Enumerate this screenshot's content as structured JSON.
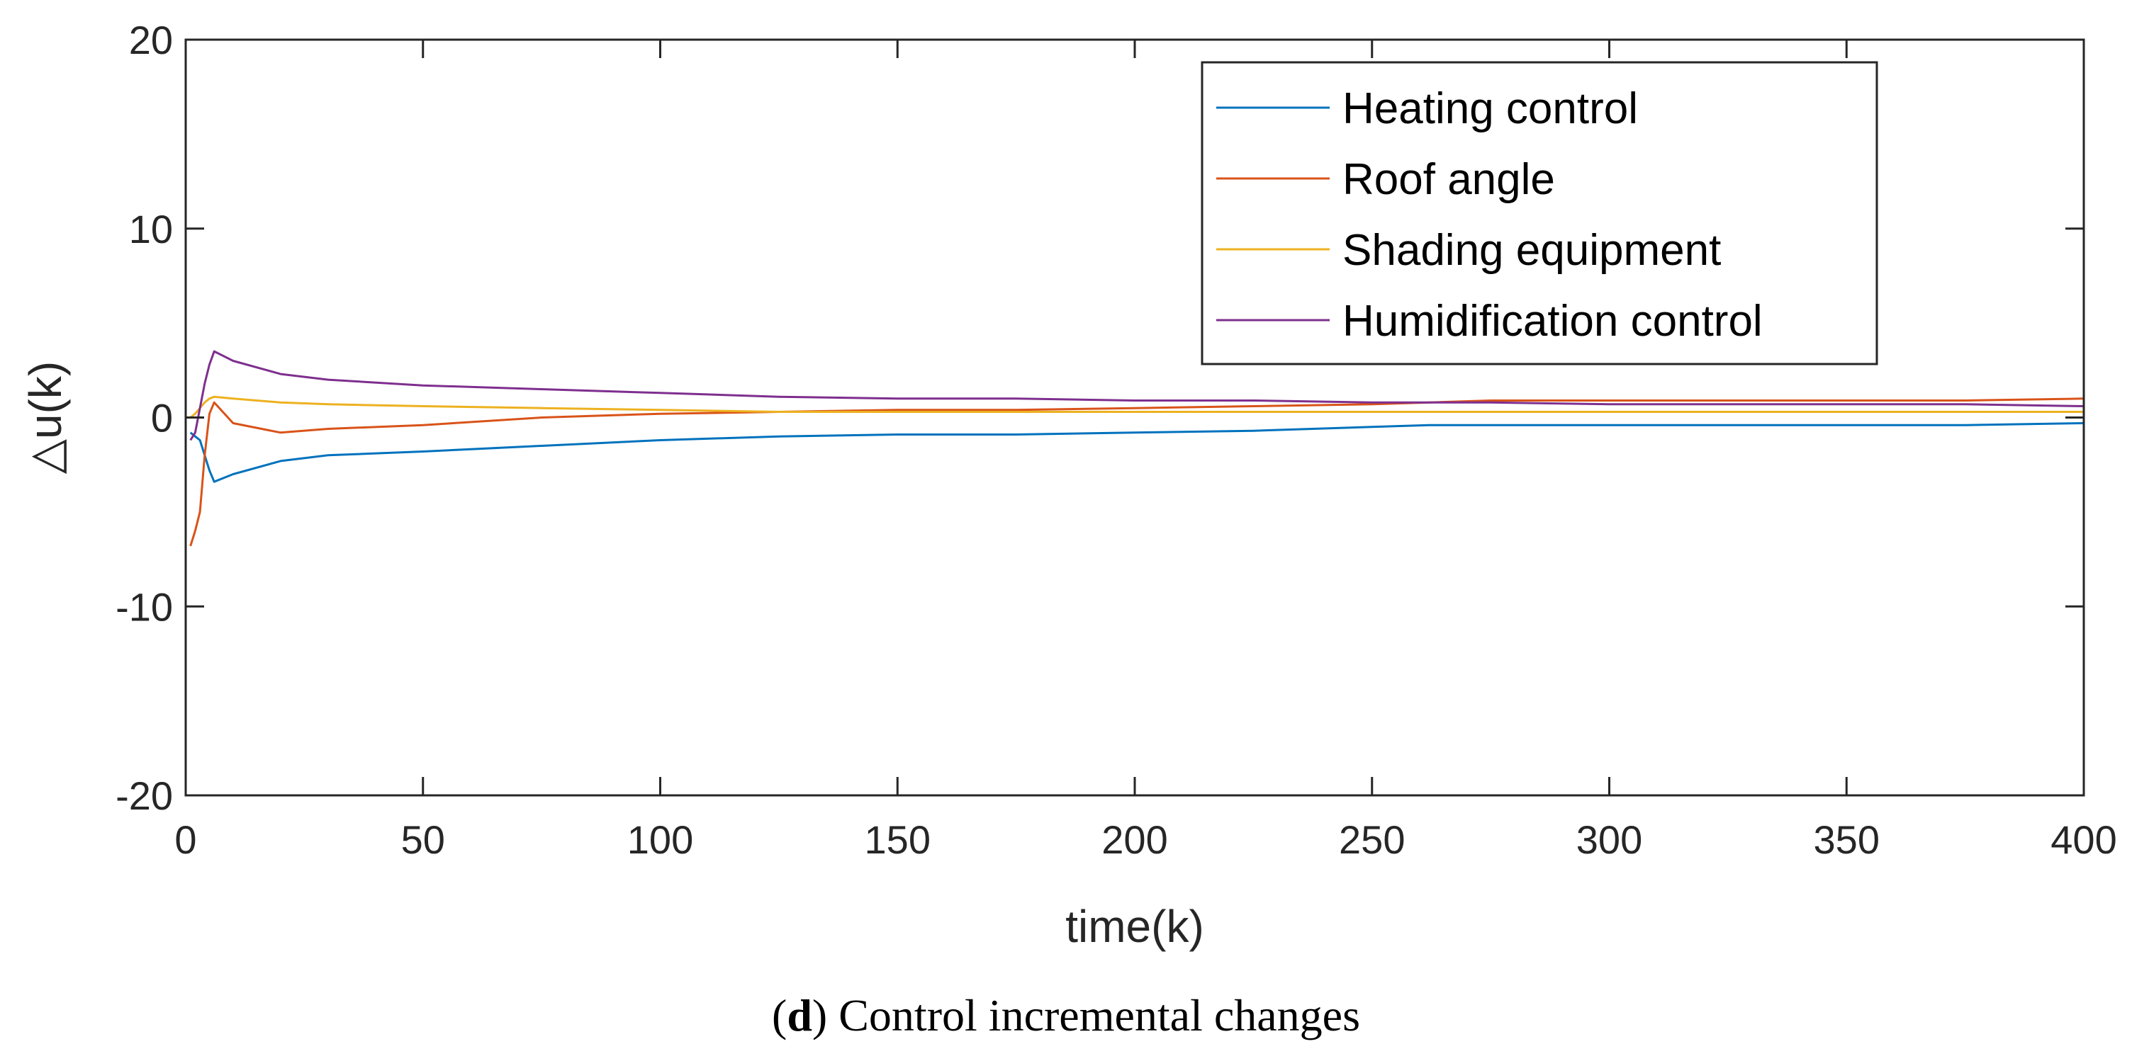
{
  "chart_data": {
    "type": "line",
    "xlabel": "time(k)",
    "ylabel": "△u(k)",
    "xlim": [
      0,
      400
    ],
    "ylim": [
      -20,
      20
    ],
    "xticks": [
      0,
      50,
      100,
      150,
      200,
      250,
      300,
      350,
      400
    ],
    "yticks": [
      -20,
      -10,
      0,
      10,
      20
    ],
    "grid": false,
    "legend_position": "top-right",
    "series": [
      {
        "name": "Heating control",
        "color": "#0072BD",
        "x": [
          1,
          2,
          3,
          5,
          6,
          10,
          20,
          30,
          50,
          75,
          100,
          125,
          150,
          175,
          200,
          225,
          250,
          262,
          275,
          300,
          325,
          350,
          375,
          400
        ],
        "values": [
          -0.8,
          -1.0,
          -1.2,
          -2.8,
          -3.4,
          -3.0,
          -2.3,
          -2.0,
          -1.8,
          -1.5,
          -1.2,
          -1.0,
          -0.9,
          -0.9,
          -0.8,
          -0.7,
          -0.5,
          -0.4,
          -0.4,
          -0.4,
          -0.4,
          -0.4,
          -0.4,
          -0.3
        ]
      },
      {
        "name": "Roof angle",
        "color": "#D95319",
        "x": [
          1,
          2,
          3,
          4,
          5,
          6,
          10,
          20,
          30,
          50,
          75,
          100,
          125,
          150,
          175,
          200,
          225,
          250,
          275,
          300,
          325,
          350,
          375,
          400
        ],
        "values": [
          -6.8,
          -6.0,
          -5.0,
          -2.0,
          0.2,
          0.8,
          -0.3,
          -0.8,
          -0.6,
          -0.4,
          0.0,
          0.2,
          0.3,
          0.4,
          0.4,
          0.5,
          0.6,
          0.7,
          0.9,
          0.9,
          0.9,
          0.9,
          0.9,
          1.0
        ]
      },
      {
        "name": "Shading equipment",
        "color": "#EDB120",
        "x": [
          1,
          2,
          3,
          4,
          5,
          6,
          10,
          20,
          30,
          50,
          75,
          100,
          125,
          150,
          175,
          200,
          225,
          250,
          275,
          300,
          325,
          350,
          375,
          400
        ],
        "values": [
          0.0,
          0.2,
          0.5,
          0.8,
          1.0,
          1.1,
          1.0,
          0.8,
          0.7,
          0.6,
          0.5,
          0.4,
          0.3,
          0.3,
          0.3,
          0.3,
          0.3,
          0.3,
          0.3,
          0.3,
          0.3,
          0.3,
          0.3,
          0.3
        ]
      },
      {
        "name": "Humidification control",
        "color": "#7E2F8E",
        "x": [
          1,
          2,
          3,
          4,
          5,
          6,
          10,
          20,
          30,
          50,
          75,
          100,
          125,
          150,
          175,
          200,
          225,
          250,
          275,
          300,
          325,
          350,
          375,
          400
        ],
        "values": [
          -1.2,
          -0.8,
          0.5,
          1.8,
          2.8,
          3.5,
          3.0,
          2.3,
          2.0,
          1.7,
          1.5,
          1.3,
          1.1,
          1.0,
          1.0,
          0.9,
          0.9,
          0.8,
          0.8,
          0.7,
          0.7,
          0.7,
          0.7,
          0.6
        ]
      }
    ]
  },
  "caption": {
    "letter": "d",
    "open_paren": "(",
    "close_paren": ")",
    "text": " Control incremental changes"
  }
}
